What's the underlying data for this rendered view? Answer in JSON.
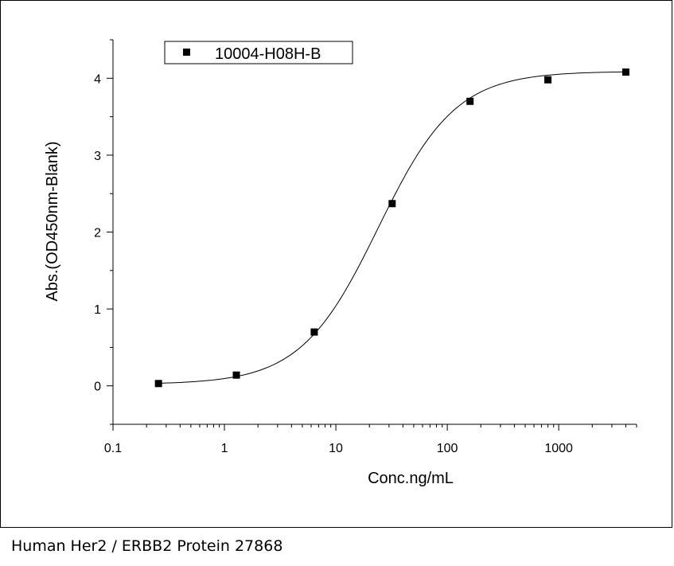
{
  "caption": "Human Her2 / ERBB2 Protein 27868",
  "chart_data": {
    "type": "scatter",
    "xscale": "log",
    "xlabel": "Conc.ng/mL",
    "ylabel": "Abs.(OD450nm-Blank)",
    "xlim": [
      0.1,
      5000
    ],
    "ylim": [
      -0.5,
      4.5
    ],
    "xticks": [
      0.1,
      1,
      10,
      100,
      1000
    ],
    "xtick_labels": [
      "0.1",
      "1",
      "10",
      "100",
      "1000"
    ],
    "yticks": [
      0,
      1,
      2,
      3,
      4
    ],
    "ytick_labels": [
      "0",
      "1",
      "2",
      "3",
      "4"
    ],
    "legend_position": "top-left",
    "series": [
      {
        "name": "10004-H08H-B",
        "marker": "square",
        "fit_curve": "sigmoidal",
        "color": "#000000",
        "x": [
          0.256,
          1.28,
          6.4,
          32,
          160,
          800,
          4000
        ],
        "y": [
          0.03,
          0.14,
          0.7,
          2.37,
          3.7,
          3.98,
          4.08
        ]
      }
    ]
  }
}
